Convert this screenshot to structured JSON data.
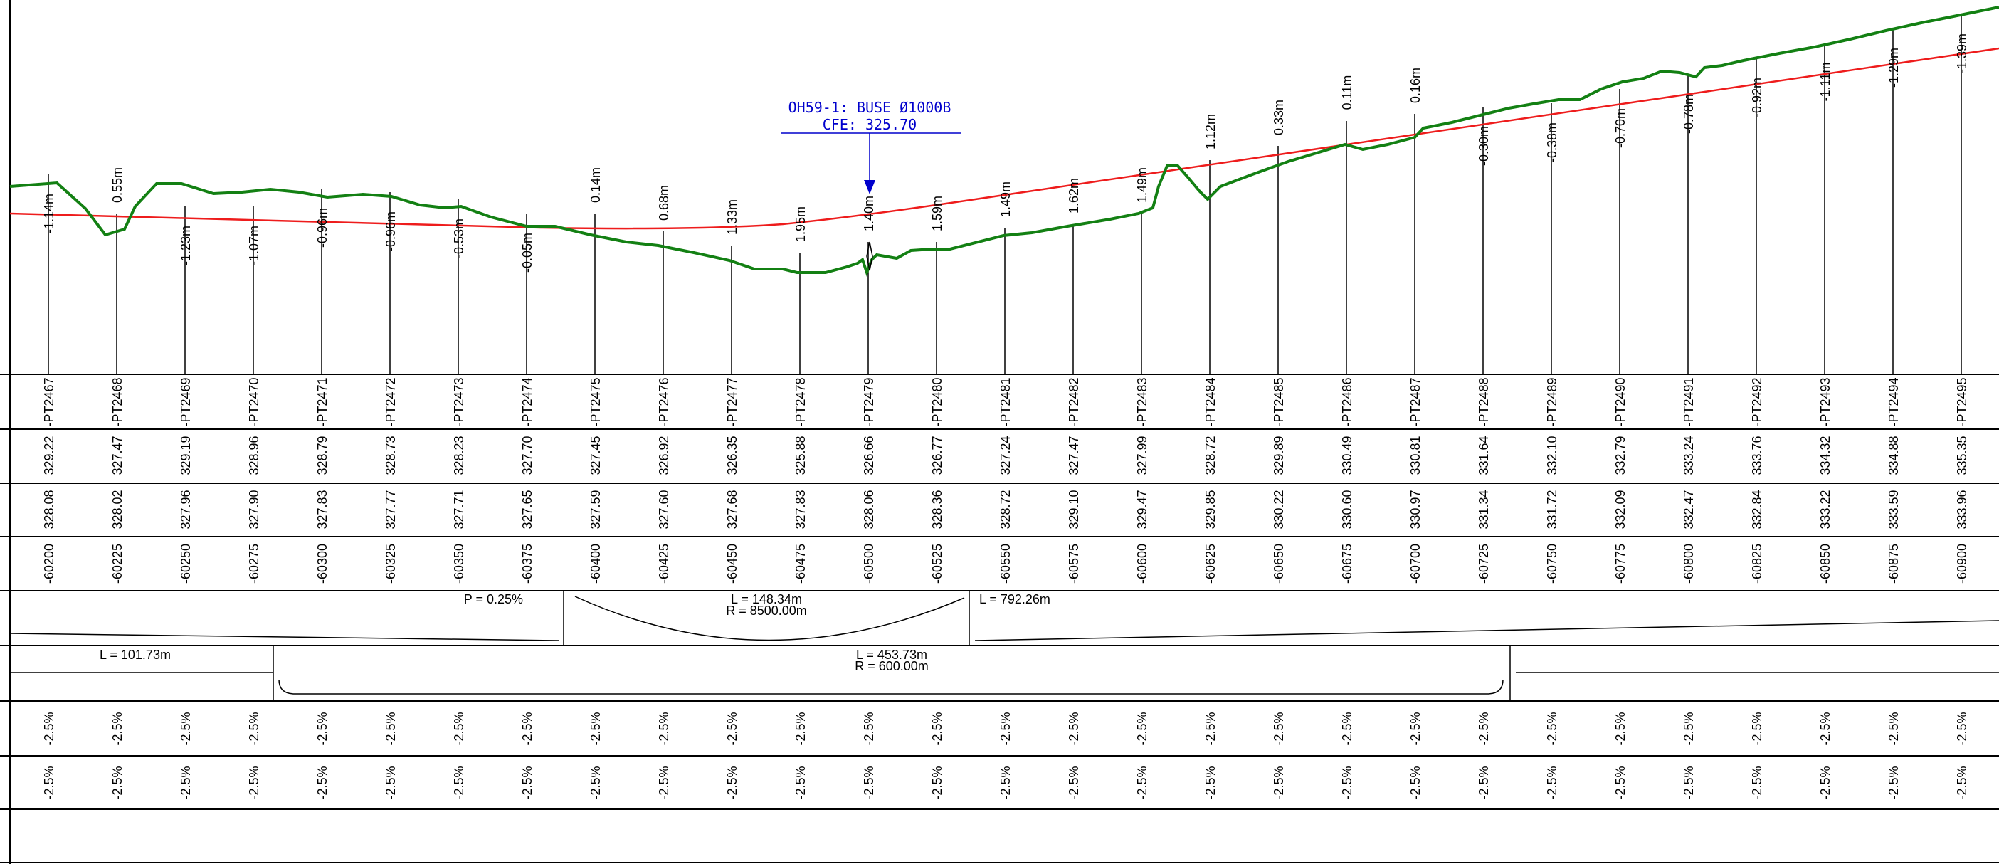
{
  "profile": {
    "pt_labels": [
      "PT2467",
      "PT2468",
      "PT2469",
      "PT2470",
      "PT2471",
      "PT2472",
      "PT2473",
      "PT2474",
      "PT2475",
      "PT2476",
      "PT2477",
      "PT2478",
      "PT2479",
      "PT2480",
      "PT2481",
      "PT2482",
      "PT2483",
      "PT2484",
      "PT2485",
      "PT2486",
      "PT2487",
      "PT2488",
      "PT2489",
      "PT2490",
      "PT2491",
      "PT2492",
      "PT2493",
      "PT2494",
      "PT2495"
    ],
    "ground_elevations": [
      "329.22",
      "327.47",
      "329.19",
      "328.96",
      "328.79",
      "328.73",
      "328.23",
      "327.70",
      "327.45",
      "326.92",
      "326.35",
      "325.88",
      "326.66",
      "326.77",
      "327.24",
      "327.47",
      "327.99",
      "328.72",
      "329.89",
      "330.49",
      "330.81",
      "331.64",
      "332.10",
      "332.79",
      "333.24",
      "333.76",
      "334.32",
      "334.88",
      "335.35"
    ],
    "grade_elevations": [
      "328.08",
      "328.02",
      "327.96",
      "327.90",
      "327.83",
      "327.77",
      "327.71",
      "327.65",
      "327.59",
      "327.60",
      "327.68",
      "327.83",
      "328.06",
      "328.36",
      "328.72",
      "329.10",
      "329.47",
      "329.85",
      "330.22",
      "330.60",
      "330.97",
      "331.34",
      "331.72",
      "332.09",
      "332.47",
      "332.84",
      "333.22",
      "333.59",
      "333.96"
    ],
    "stations": [
      "60200",
      "60225",
      "60250",
      "60275",
      "60300",
      "60325",
      "60350",
      "60375",
      "60400",
      "60425",
      "60450",
      "60475",
      "60500",
      "60525",
      "60550",
      "60575",
      "60600",
      "60625",
      "60650",
      "60675",
      "60700",
      "60725",
      "60750",
      "60775",
      "60800",
      "60825",
      "60850",
      "60875",
      "60900"
    ],
    "differences": [
      "-1.14m",
      "0.55m",
      "-1.23m",
      "-1.07m",
      "-0.96m",
      "-0.96m",
      "-0.53m",
      "-0.05m",
      "0.14m",
      "0.68m",
      "1.33m",
      "1.95m",
      "1.40m",
      "1.59m",
      "1.49m",
      "1.62m",
      "1.49m",
      "1.12m",
      "0.33m",
      "0.11m",
      "0.16m",
      "-0.30m",
      "-0.38m",
      "-0.70m",
      "-0.78m",
      "-0.92m",
      "-1.11m",
      "-1.29m",
      "-1.39m"
    ],
    "superelevation_left": [
      "-2.5%",
      "-2.5%",
      "-2.5%",
      "-2.5%",
      "-2.5%",
      "-2.5%",
      "-2.5%",
      "-2.5%",
      "-2.5%",
      "-2.5%",
      "-2.5%",
      "-2.5%",
      "-2.5%",
      "-2.5%",
      "-2.5%",
      "-2.5%",
      "-2.5%",
      "-2.5%",
      "-2.5%",
      "-2.5%",
      "-2.5%",
      "-2.5%",
      "-2.5%",
      "-2.5%",
      "-2.5%",
      "-2.5%",
      "-2.5%",
      "-2.5%",
      "-2.5%"
    ],
    "superelevation_right": [
      "-2.5%",
      "-2.5%",
      "-2.5%",
      "-2.5%",
      "-2.5%",
      "-2.5%",
      "-2.5%",
      "-2.5%",
      "-2.5%",
      "-2.5%",
      "-2.5%",
      "-2.5%",
      "-2.5%",
      "-2.5%",
      "-2.5%",
      "-2.5%",
      "-2.5%",
      "-2.5%",
      "-2.5%",
      "-2.5%",
      "-2.5%",
      "-2.5%",
      "-2.5%",
      "-2.5%",
      "-2.5%",
      "-2.5%",
      "-2.5%",
      "-2.5%",
      "-2.5%"
    ]
  },
  "vertical_alignment": {
    "grade_label": "P = 0.25%",
    "curve_length": "L = 148.34m",
    "curve_radius": "R = 8500.00m",
    "tangent_length": "L = 792.26m"
  },
  "horizontal_alignment": {
    "tangent_length": "L = 101.73m",
    "curve_length": "L = 453.73m",
    "curve_radius": "R = 600.00m"
  },
  "culvert": {
    "line1": "OH59-1: BUSE Ø1000B",
    "line2": "CFE: 325.70"
  },
  "colors": {
    "ground_line": "#138013",
    "grade_line": "#ee1c1c",
    "annotation": "#0000cc",
    "grid": "#000000"
  }
}
